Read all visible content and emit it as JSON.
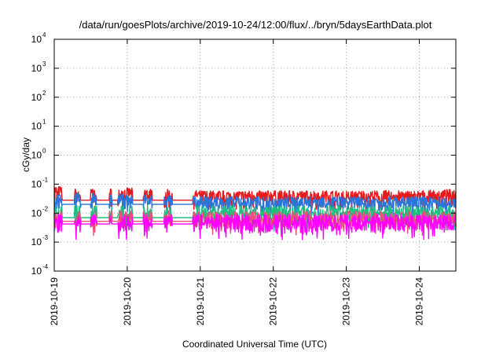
{
  "chart_data": {
    "type": "line",
    "title": "/data/run/goesPlots/archive/2019-10-24/12:00/flux/../bryn/5daysEarthData.plot",
    "xlabel": "Coordinated Universal Time (UTC)",
    "ylabel": "cGy/day",
    "y_scale": "log",
    "ylim": [
      0.0001,
      10000
    ],
    "y_ticks": [
      {
        "base": "10",
        "exp": "-4",
        "value": 0.0001
      },
      {
        "base": "10",
        "exp": "-3",
        "value": 0.001
      },
      {
        "base": "10",
        "exp": "-2",
        "value": 0.01
      },
      {
        "base": "10",
        "exp": "-1",
        "value": 0.1
      },
      {
        "base": "10",
        "exp": "0",
        "value": 1
      },
      {
        "base": "10",
        "exp": "1",
        "value": 10
      },
      {
        "base": "10",
        "exp": "2",
        "value": 100
      },
      {
        "base": "10",
        "exp": "3",
        "value": 1000
      },
      {
        "base": "10",
        "exp": "4",
        "value": 10000
      }
    ],
    "x_ticks": [
      "2019-10-19",
      "2019-10-20",
      "2019-10-21",
      "2019-10-22",
      "2019-10-23",
      "2019-10-24"
    ],
    "xlim": [
      "2019-10-19T00:00",
      "2019-10-24T12:00"
    ],
    "grid": true,
    "legend": "none",
    "active_intervals": [
      [
        "2019-10-19T00:00",
        "2019-10-19T02:30"
      ],
      [
        "2019-10-19T06:40",
        "2019-10-19T08:40"
      ],
      [
        "2019-10-19T12:00",
        "2019-10-19T14:00"
      ],
      [
        "2019-10-19T18:10",
        "2019-10-19T19:00"
      ],
      [
        "2019-10-19T20:50",
        "2019-10-20T01:40"
      ],
      [
        "2019-10-20T05:20",
        "2019-10-20T08:10"
      ],
      [
        "2019-10-20T12:10",
        "2019-10-20T14:50"
      ],
      [
        "2019-10-20T21:30",
        "2019-10-24T12:00"
      ]
    ],
    "gap_levels": [
      {
        "color": "#e41a1c",
        "value": 0.028
      },
      {
        "color": "#2b74d8",
        "value": 0.02
      },
      {
        "color": "#1fbf7f",
        "value": 0.007
      },
      {
        "color": "#e8507a",
        "value": 0.0052
      },
      {
        "color": "#ff00ff",
        "value": 0.0042
      }
    ],
    "series": [
      {
        "color": "#e41a1c",
        "values": [
          {
            "x": "2019-10-19T00:00",
            "y": 0.06
          },
          {
            "x": "2019-10-19T08:00",
            "y": 0.045
          },
          {
            "x": "2019-10-20T00:00",
            "y": 0.05
          },
          {
            "x": "2019-10-20T12:00",
            "y": 0.045
          },
          {
            "x": "2019-10-21T00:00",
            "y": 0.04
          },
          {
            "x": "2019-10-22T00:00",
            "y": 0.04
          },
          {
            "x": "2019-10-23T00:00",
            "y": 0.04
          },
          {
            "x": "2019-10-24T00:00",
            "y": 0.04
          },
          {
            "x": "2019-10-24T12:00",
            "y": 0.045
          }
        ]
      },
      {
        "color": "#2b74d8",
        "values": [
          {
            "x": "2019-10-19T00:00",
            "y": 0.035
          },
          {
            "x": "2019-10-20T00:00",
            "y": 0.03
          },
          {
            "x": "2019-10-21T00:00",
            "y": 0.025
          },
          {
            "x": "2019-10-22T00:00",
            "y": 0.025
          },
          {
            "x": "2019-10-23T00:00",
            "y": 0.025
          },
          {
            "x": "2019-10-24T12:00",
            "y": 0.025
          }
        ]
      },
      {
        "color": "#1fbf7f",
        "values": [
          {
            "x": "2019-10-19T00:00",
            "y": 0.012
          },
          {
            "x": "2019-10-20T00:00",
            "y": 0.012
          },
          {
            "x": "2019-10-21T00:00",
            "y": 0.012
          },
          {
            "x": "2019-10-22T00:00",
            "y": 0.012
          },
          {
            "x": "2019-10-23T00:00",
            "y": 0.012
          },
          {
            "x": "2019-10-24T12:00",
            "y": 0.012
          }
        ]
      },
      {
        "color": "#e8507a",
        "values": [
          {
            "x": "2019-10-19T00:00",
            "y": 0.008
          },
          {
            "x": "2019-10-20T00:00",
            "y": 0.008
          },
          {
            "x": "2019-10-21T00:00",
            "y": 0.008
          },
          {
            "x": "2019-10-22T00:00",
            "y": 0.008
          },
          {
            "x": "2019-10-23T00:00",
            "y": 0.008
          },
          {
            "x": "2019-10-24T12:00",
            "y": 0.008
          }
        ]
      },
      {
        "color": "#ff00ff",
        "values": [
          {
            "x": "2019-10-19T00:00",
            "y": 0.006
          },
          {
            "x": "2019-10-20T00:00",
            "y": 0.006
          },
          {
            "x": "2019-10-21T00:00",
            "y": 0.006
          },
          {
            "x": "2019-10-22T00:00",
            "y": 0.006
          },
          {
            "x": "2019-10-23T00:00",
            "y": 0.006
          },
          {
            "x": "2019-10-24T12:00",
            "y": 0.006
          }
        ]
      }
    ]
  }
}
